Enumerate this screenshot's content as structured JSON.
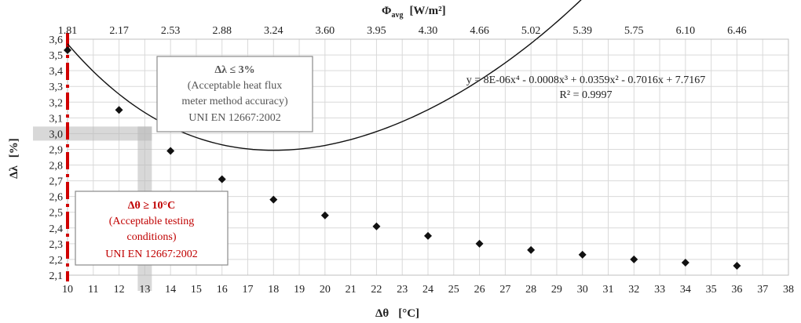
{
  "chart_data": {
    "type": "scatter",
    "xlabel_main": "Δθ",
    "xlabel_unit": "[°C]",
    "ylabel_main": "Δλ",
    "ylabel_unit": "[%]",
    "top_axis_label_main": "Φ",
    "top_axis_label_sub": "avg",
    "top_axis_label_unit": "[W/m²]",
    "xlim": [
      10,
      38
    ],
    "ylim": [
      2.1,
      3.6
    ],
    "x_ticks": [
      10,
      11,
      12,
      13,
      14,
      15,
      16,
      17,
      18,
      19,
      20,
      21,
      22,
      23,
      24,
      25,
      26,
      27,
      28,
      29,
      30,
      31,
      32,
      33,
      34,
      35,
      36,
      37,
      38
    ],
    "y_ticks": [
      "2,1",
      "2,2",
      "2,3",
      "2,4",
      "2,5",
      "2,6",
      "2,7",
      "2,8",
      "2,9",
      "3,0",
      "3,1",
      "3,2",
      "3,3",
      "3,4",
      "3,5",
      "3,6"
    ],
    "top_ticks": [
      {
        "x": 10,
        "label": "1.81"
      },
      {
        "x": 12,
        "label": "2.17"
      },
      {
        "x": 14,
        "label": "2.53"
      },
      {
        "x": 16,
        "label": "2.88"
      },
      {
        "x": 18,
        "label": "3.24"
      },
      {
        "x": 20,
        "label": "3.60"
      },
      {
        "x": 22,
        "label": "3.95"
      },
      {
        "x": 24,
        "label": "4.30"
      },
      {
        "x": 26,
        "label": "4.66"
      },
      {
        "x": 28,
        "label": "5.02"
      },
      {
        "x": 30,
        "label": "5.39"
      },
      {
        "x": 32,
        "label": "5.75"
      },
      {
        "x": 34,
        "label": "6.10"
      },
      {
        "x": 36,
        "label": "6.46"
      }
    ],
    "points": [
      {
        "x": 10,
        "y": 3.53
      },
      {
        "x": 12,
        "y": 3.15
      },
      {
        "x": 14,
        "y": 2.89
      },
      {
        "x": 16,
        "y": 2.71
      },
      {
        "x": 18,
        "y": 2.58
      },
      {
        "x": 20,
        "y": 2.48
      },
      {
        "x": 22,
        "y": 2.41
      },
      {
        "x": 24,
        "y": 2.35
      },
      {
        "x": 26,
        "y": 2.3
      },
      {
        "x": 28,
        "y": 2.26
      },
      {
        "x": 30,
        "y": 2.23
      },
      {
        "x": 32,
        "y": 2.2
      },
      {
        "x": 34,
        "y": 2.18
      },
      {
        "x": 36,
        "y": 2.16
      }
    ],
    "fit": {
      "coefficients": [
        8e-06,
        -0.0008,
        0.0359,
        -0.7016,
        7.7167
      ],
      "equation": "y = 8E-06x⁴ - 0.0008x³ + 0.0359x² - 0.7016x + 7.7167",
      "r2": "R² = 0.9997"
    },
    "threshold_x": 10,
    "highlight_y": 3.0,
    "highlight_x": 13.0,
    "grid": true,
    "annotation_gray": [
      "Δλ ≤ 3%",
      "(Acceptable heat flux",
      "meter method accuracy)",
      "UNI EN 12667:2002"
    ],
    "annotation_red": [
      "Δθ ≥ 10°C",
      "(Acceptable testing",
      "conditions)",
      "UNI EN 12667:2002"
    ],
    "colors": {
      "threshold": "#d00000",
      "highlight": "#b8b8b8",
      "grid": "#d9d9d9",
      "marker": "#111111",
      "curve": "#111111"
    }
  }
}
